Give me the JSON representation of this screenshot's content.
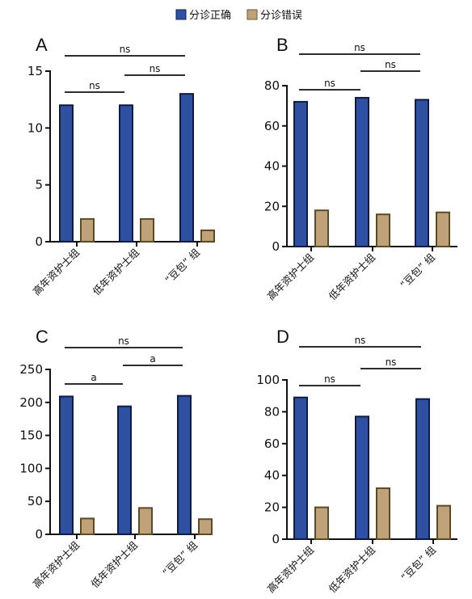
{
  "legend": {
    "correct_label": "分诊正确",
    "error_label": "分诊错误",
    "correct_color": "#2f4fa0",
    "error_color": "#bfa27a"
  },
  "chart_data": [
    {
      "type": "bar",
      "panel": "A",
      "categories": [
        "高年资护士组",
        "低年资护士组",
        "“豆包” 组"
      ],
      "series": [
        {
          "name": "分诊正确",
          "values": [
            12,
            12,
            13
          ]
        },
        {
          "name": "分诊错误",
          "values": [
            2,
            2,
            1
          ]
        }
      ],
      "ylim": [
        0,
        15
      ],
      "yticks": [
        0,
        5,
        10,
        15
      ],
      "significance": [
        {
          "from": 0,
          "to": 1,
          "label": "ns"
        },
        {
          "from": 1,
          "to": 2,
          "label": "ns"
        },
        {
          "from": 0,
          "to": 2,
          "label": "ns"
        }
      ]
    },
    {
      "type": "bar",
      "panel": "B",
      "categories": [
        "高年资护士组",
        "低年资护士组",
        "“豆包” 组"
      ],
      "series": [
        {
          "name": "分诊正确",
          "values": [
            72,
            74,
            73
          ]
        },
        {
          "name": "分诊错误",
          "values": [
            18,
            16,
            17
          ]
        }
      ],
      "ylim": [
        0,
        80
      ],
      "yticks": [
        0,
        20,
        40,
        60,
        80
      ],
      "significance": [
        {
          "from": 0,
          "to": 1,
          "label": "ns"
        },
        {
          "from": 1,
          "to": 2,
          "label": "ns"
        },
        {
          "from": 0,
          "to": 2,
          "label": "ns"
        }
      ]
    },
    {
      "type": "bar",
      "panel": "C",
      "categories": [
        "高年资护士组",
        "低年资护士组",
        "“豆包” 组"
      ],
      "series": [
        {
          "name": "分诊正确",
          "values": [
            209,
            194,
            210
          ]
        },
        {
          "name": "分诊错误",
          "values": [
            24,
            40,
            23
          ]
        }
      ],
      "ylim": [
        0,
        250
      ],
      "yticks": [
        0,
        50,
        100,
        150,
        200,
        250
      ],
      "significance": [
        {
          "from": 0,
          "to": 1,
          "label": "a"
        },
        {
          "from": 1,
          "to": 2,
          "label": "a"
        },
        {
          "from": 0,
          "to": 2,
          "label": "ns"
        }
      ]
    },
    {
      "type": "bar",
      "panel": "D",
      "categories": [
        "高年资护士组",
        "低年资护士组",
        "“豆包” 组"
      ],
      "series": [
        {
          "name": "分诊正确",
          "values": [
            89,
            77,
            88
          ]
        },
        {
          "name": "分诊错误",
          "values": [
            20,
            32,
            21
          ]
        }
      ],
      "ylim": [
        0,
        100
      ],
      "yticks": [
        0,
        20,
        40,
        60,
        80,
        100
      ],
      "significance": [
        {
          "from": 0,
          "to": 1,
          "label": "ns"
        },
        {
          "from": 1,
          "to": 2,
          "label": "ns"
        },
        {
          "from": 0,
          "to": 2,
          "label": "ns"
        }
      ]
    }
  ]
}
